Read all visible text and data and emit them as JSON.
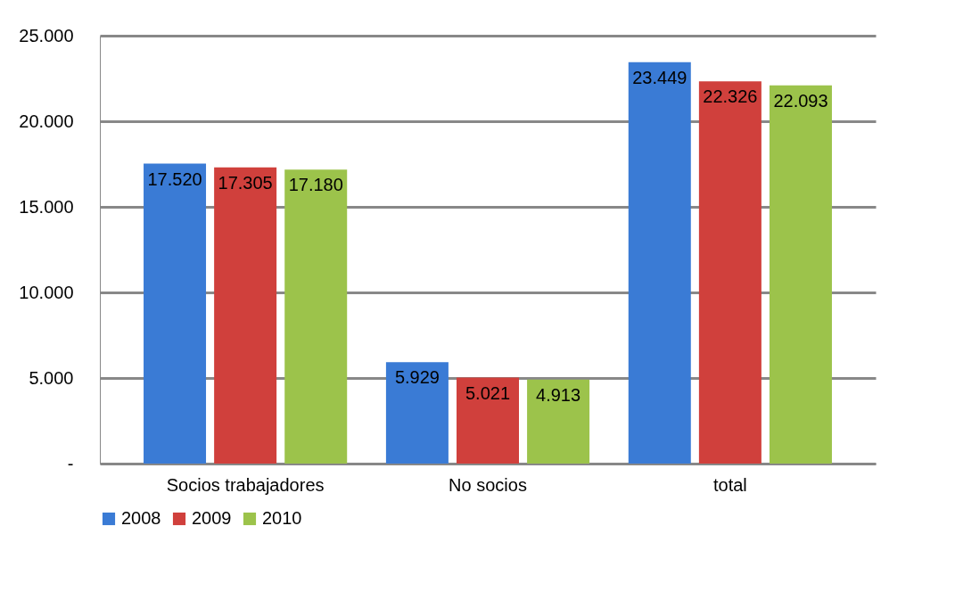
{
  "chart_data": {
    "type": "bar",
    "categories": [
      "Socios trabajadores",
      "No socios",
      "total"
    ],
    "series": [
      {
        "name": "2008",
        "color": "#3a7bd5",
        "values": [
          17520,
          5929,
          23449
        ],
        "value_labels": [
          "17.520",
          "5.929",
          "23.449"
        ]
      },
      {
        "name": "2009",
        "color": "#d0403c",
        "values": [
          17305,
          5021,
          22326
        ],
        "value_labels": [
          "17.305",
          "5.021",
          "22.326"
        ]
      },
      {
        "name": "2010",
        "color": "#9cc34b",
        "values": [
          17180,
          4913,
          22093
        ],
        "value_labels": [
          "17.180",
          "4.913",
          "22.093"
        ]
      }
    ],
    "ylim": [
      0,
      25000
    ],
    "yticks": [
      {
        "value": 0,
        "label": "-"
      },
      {
        "value": 5000,
        "label": "5.000"
      },
      {
        "value": 10000,
        "label": "10.000"
      },
      {
        "value": 15000,
        "label": "15.000"
      },
      {
        "value": 20000,
        "label": "20.000"
      },
      {
        "value": 25000,
        "label": "25.000"
      }
    ],
    "grid": "y",
    "legend": "bottom"
  }
}
